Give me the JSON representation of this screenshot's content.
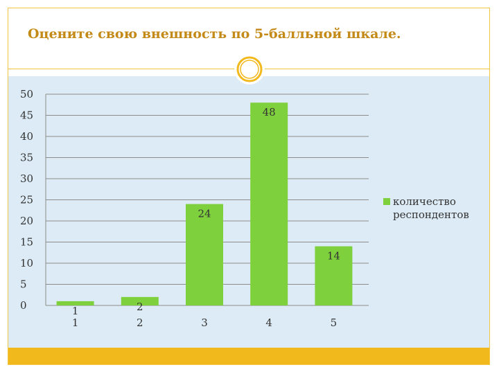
{
  "slide": {
    "title": "Оцените свою внешность по 5-балльной шкале."
  },
  "colors": {
    "accent": "#f2b91c",
    "title_text": "#c48a18",
    "content_bg": "#dcebf5",
    "bar": "#7ed13d"
  },
  "icons": {
    "ornament": "ring-ornament-icon"
  },
  "chart_data": {
    "type": "bar",
    "categories": [
      "1",
      "2",
      "3",
      "4",
      "5"
    ],
    "series": [
      {
        "name": "количество респондентов",
        "values": [
          1,
          2,
          24,
          48,
          14
        ],
        "color": "#7ed13d"
      }
    ],
    "data_labels": [
      "1",
      "2",
      "24",
      "48",
      "14"
    ],
    "y_ticks": [
      "0",
      "5",
      "10",
      "15",
      "20",
      "25",
      "30",
      "35",
      "40",
      "45",
      "50"
    ],
    "ylim": [
      0,
      50
    ],
    "grid": true,
    "legend_position": "right",
    "title": "",
    "xlabel": "",
    "ylabel": ""
  }
}
